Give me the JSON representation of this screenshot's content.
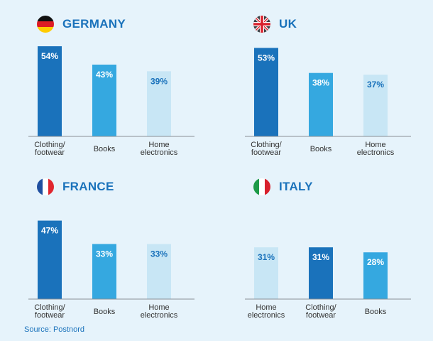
{
  "colors": {
    "background": "#e6f3fb",
    "title": "#1a72bb",
    "dark": "#1a72bb",
    "medium": "#35a8e0",
    "light": "#c8e6f5",
    "axis": "#8a8f94"
  },
  "chart_data": [
    {
      "type": "bar",
      "title": "GERMANY",
      "flag": "germany-flag-icon",
      "categories": [
        "Clothing/ footwear",
        "Books",
        "Home electronics"
      ],
      "values": [
        54,
        43,
        39
      ],
      "labels": [
        "54%",
        "43%",
        "39%"
      ],
      "shades": [
        "dark",
        "medium",
        "light"
      ],
      "ylim": [
        0,
        60
      ],
      "grid": false
    },
    {
      "type": "bar",
      "title": "UK",
      "flag": "uk-flag-icon",
      "categories": [
        "Clothing/ footwear",
        "Books",
        "Home electronics"
      ],
      "values": [
        53,
        38,
        37
      ],
      "labels": [
        "53%",
        "38%",
        "37%"
      ],
      "shades": [
        "dark",
        "medium",
        "light"
      ],
      "ylim": [
        0,
        60
      ],
      "grid": false
    },
    {
      "type": "bar",
      "title": "FRANCE",
      "flag": "france-flag-icon",
      "categories": [
        "Clothing/ footwear",
        "Books",
        "Home electronics"
      ],
      "values": [
        47,
        33,
        33
      ],
      "labels": [
        "47%",
        "33%",
        "33%"
      ],
      "shades": [
        "dark",
        "medium",
        "light"
      ],
      "ylim": [
        0,
        60
      ],
      "grid": false
    },
    {
      "type": "bar",
      "title": "ITALY",
      "flag": "italy-flag-icon",
      "categories": [
        "Home electronics",
        "Clothing/ footwear",
        "Books"
      ],
      "values": [
        31,
        31,
        28
      ],
      "labels": [
        "31%",
        "31%",
        "28%"
      ],
      "shades": [
        "light",
        "dark",
        "medium"
      ],
      "ylim": [
        0,
        60
      ],
      "grid": false
    }
  ],
  "source": "Source: Postnord"
}
